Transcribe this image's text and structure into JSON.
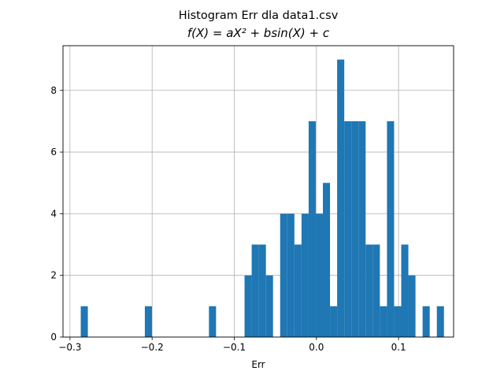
{
  "chart_data": {
    "type": "bar",
    "title_line1": "Histogram Err dla data1.csv",
    "title_line2": "f(X) = aX² + bsin(X) + c",
    "xlabel": "Err",
    "ylabel": "",
    "xlim": [
      -0.3085,
      0.167
    ],
    "ylim": [
      0,
      9.45
    ],
    "grid": true,
    "bar_color": "#1f77b4",
    "x_ticks": [
      {
        "value": -0.3,
        "label": "−0.3"
      },
      {
        "value": -0.2,
        "label": "−0.2"
      },
      {
        "value": -0.1,
        "label": "−0.1"
      },
      {
        "value": 0.0,
        "label": "0.0"
      },
      {
        "value": 0.1,
        "label": "0.1"
      }
    ],
    "y_ticks": [
      {
        "value": 0,
        "label": "0"
      },
      {
        "value": 2,
        "label": "2"
      },
      {
        "value": 4,
        "label": "4"
      },
      {
        "value": 6,
        "label": "6"
      },
      {
        "value": 8,
        "label": "8"
      }
    ],
    "bin_start": -0.2869,
    "bin_width": 0.00867,
    "counts": [
      1,
      0,
      0,
      0,
      0,
      0,
      0,
      0,
      0,
      1,
      0,
      0,
      0,
      0,
      0,
      0,
      0,
      0,
      1,
      0,
      0,
      0,
      0,
      2,
      3,
      3,
      2,
      0,
      4,
      4,
      3,
      4,
      7,
      4,
      5,
      1,
      9,
      7,
      7,
      7,
      3,
      3,
      1,
      7,
      1,
      3,
      2,
      0,
      1,
      0,
      1
    ]
  }
}
